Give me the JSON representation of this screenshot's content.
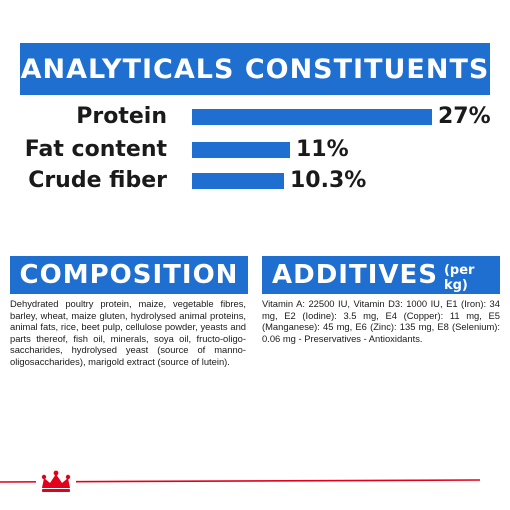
{
  "title": "ANALYTICALS CONSTITUENTS",
  "constituents": [
    {
      "label": "Protein",
      "value": "27%",
      "level": 27
    },
    {
      "label": "Fat content",
      "value": "11%",
      "level": 11
    },
    {
      "label": "Crude fiber",
      "value": "10.3%",
      "level": 10.3
    }
  ],
  "composition": {
    "heading": "COMPOSITION",
    "text": "Dehydrated poultry protein, maize, vegetable fibres, barley, wheat, maize gluten, hydrolysed animal proteins, animal fats, rice, beet pulp, cellulose powder, yeasts and parts thereof, fish oil, minerals, soya oil, fructo-oligo-saccharides, hydrolysed yeast (source of manno-oligosaccharides), marigold extract (source of lutein)."
  },
  "additives": {
    "heading": "ADDITIVES",
    "unit": "(per kg)",
    "text": "Vitamin A: 22500 IU, Vitamin D3: 1000 IU, E1 (Iron): 34 mg, E2 (Iodine): 3.5 mg, E4 (Copper): 11 mg, E5 (Manganese): 45 mg, E6 (Zinc): 135 mg, E8 (Selenium): 0.06 mg - Preservatives - Antioxidants."
  },
  "colors": {
    "accent": "#1f6fd1",
    "brand_red": "#e2001a"
  },
  "logo_icon": "crown-icon"
}
